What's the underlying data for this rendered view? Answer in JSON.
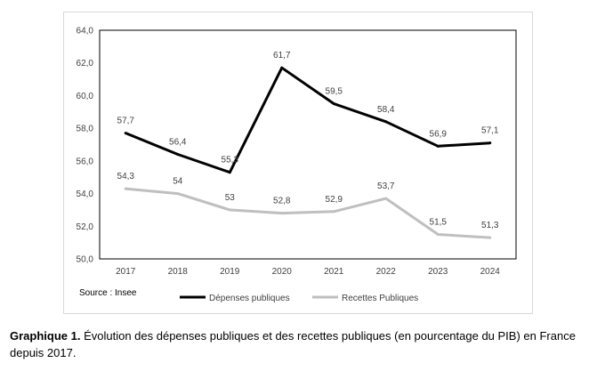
{
  "chart_data": {
    "type": "line",
    "x": [
      "2017",
      "2018",
      "2019",
      "2020",
      "2021",
      "2022",
      "2023",
      "2024"
    ],
    "series": [
      {
        "name": "Dépenses publiques",
        "values": [
          57.7,
          56.4,
          55.3,
          61.7,
          59.5,
          58.4,
          56.9,
          57.1
        ],
        "labels": [
          "57,7",
          "56,4",
          "55,3",
          "61,7",
          "59,5",
          "58,4",
          "56,9",
          "57,1"
        ],
        "color": "#000000"
      },
      {
        "name": "Recettes Publiques",
        "values": [
          54.3,
          54,
          53,
          52.8,
          52.9,
          53.7,
          51.5,
          51.3
        ],
        "labels": [
          "54,3",
          "54",
          "53",
          "52,8",
          "52,9",
          "53,7",
          "51,5",
          "51,3"
        ],
        "color": "#bfbfbf"
      }
    ],
    "ylim": [
      50,
      64
    ],
    "yticks": [
      50,
      52,
      54,
      56,
      58,
      60,
      62,
      64
    ],
    "ytick_labels": [
      "50,0",
      "52,0",
      "54,0",
      "56,0",
      "58,0",
      "60,0",
      "62,0",
      "64,0"
    ],
    "grid": false,
    "legend_position": "bottom",
    "source": "Source : Insee"
  },
  "caption": {
    "lead": "Graphique 1.",
    "text": " Évolution des dépenses publiques et des recettes publiques (en pourcentage du PIB) en France depuis 2017."
  }
}
